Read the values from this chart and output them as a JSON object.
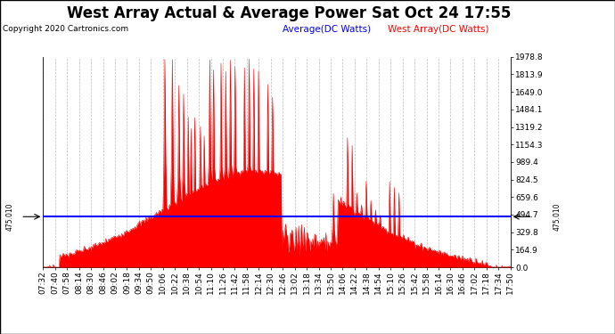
{
  "title": "West Array Actual & Average Power Sat Oct 24 17:55",
  "copyright": "Copyright 2020 Cartronics.com",
  "legend_average": "Average(DC Watts)",
  "legend_west": "West Array(DC Watts)",
  "average_value": 475.01,
  "ymax": 1978.8,
  "ymin": 0.0,
  "yticks": [
    0.0,
    164.9,
    329.8,
    494.7,
    659.6,
    824.5,
    989.4,
    1154.3,
    1319.2,
    1484.1,
    1649.0,
    1813.9,
    1978.8
  ],
  "ytick_labels": [
    "0.0",
    "164.9",
    "329.8",
    "494.7",
    "659.6",
    "824.5",
    "989.4",
    "1154.3",
    "1319.2",
    "1484.1",
    "1649.0",
    "1813.9",
    "1978.8"
  ],
  "color_west": "#ff0000",
  "color_average": "#0000ff",
  "background_color": "#ffffff",
  "grid_color": "#bbbbbb",
  "title_fontsize": 12,
  "tick_fontsize": 6.5,
  "legend_fontsize": 7.5,
  "copyright_fontsize": 6.5,
  "avg_label": "475.010",
  "xtick_labels": [
    "07:32",
    "07:40",
    "07:58",
    "08:14",
    "08:30",
    "08:46",
    "09:02",
    "09:18",
    "09:34",
    "09:50",
    "10:06",
    "10:22",
    "10:38",
    "10:54",
    "11:10",
    "11:26",
    "11:42",
    "11:58",
    "12:14",
    "12:30",
    "12:46",
    "13:02",
    "13:18",
    "13:34",
    "13:50",
    "14:06",
    "14:22",
    "14:38",
    "14:54",
    "15:10",
    "15:26",
    "15:42",
    "15:58",
    "16:14",
    "16:30",
    "16:46",
    "17:02",
    "17:18",
    "17:34",
    "17:50"
  ],
  "num_points": 500
}
